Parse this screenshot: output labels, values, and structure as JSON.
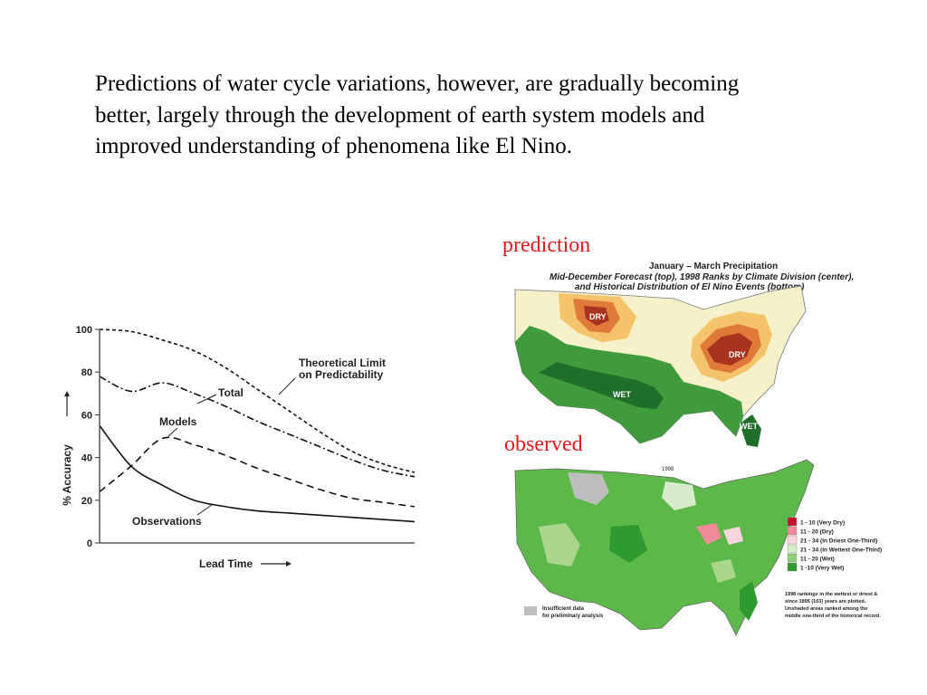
{
  "slide": {
    "paragraph_lines": [
      "Predictions of water cycle variations, however, are gradually becoming",
      "better, largely through the development of earth system models and",
      "improved understanding of phenomena like El Nino."
    ],
    "prediction_label": "prediction",
    "observed_label": "observed",
    "label_color": "#e21a1a"
  },
  "chart_data": {
    "type": "line",
    "title": "",
    "ylabel": "% Accuracy",
    "xlabel": "Lead Time",
    "ylim": [
      0,
      100
    ],
    "yticks": [
      "0",
      "20",
      "40",
      "60",
      "80",
      "100"
    ],
    "x": [
      0,
      1,
      2,
      3,
      4,
      5,
      6,
      7,
      8,
      9,
      10
    ],
    "series": [
      {
        "name": "Theoretical Limit on Predictability",
        "style": "dotted",
        "values": [
          100,
          99,
          95,
          90,
          82,
          72,
          62,
          52,
          43,
          37,
          33
        ]
      },
      {
        "name": "Total",
        "style": "dash-dot",
        "values": [
          78,
          71,
          75,
          70,
          64,
          57,
          51,
          45,
          39,
          34,
          31
        ]
      },
      {
        "name": "Models",
        "style": "dashed",
        "values": [
          24,
          36,
          49,
          46,
          41,
          35,
          30,
          25,
          21,
          19,
          17
        ]
      },
      {
        "name": "Observations",
        "style": "solid",
        "values": [
          55,
          36,
          27,
          20,
          17,
          15,
          14,
          13,
          12,
          11,
          10
        ]
      }
    ],
    "annotations": [
      "Theoretical Limit",
      "on Predictability",
      "Total",
      "Models",
      "Observations"
    ],
    "grid": false
  },
  "maps": {
    "title_line1": "January – March Precipitation",
    "title_line2": "Mid-December Forecast (top), 1998 Ranks by Climate Division (center),",
    "title_line3": "and Historical Distribution of El Nino Events (bottom)",
    "top_labels": [
      "DRY",
      "DRY",
      "WET",
      "WET"
    ],
    "legend_title": "1998",
    "legend": [
      {
        "label": "1 - 10 (Very Dry)",
        "color": "#c8102e"
      },
      {
        "label": "11 - 20 (Dry)",
        "color": "#f08a98"
      },
      {
        "label": "21 - 34 (in Driest One-Third)",
        "color": "#f9d5dc"
      },
      {
        "label": "21 - 34 (in Wettest One-Third)",
        "color": "#d6eccb"
      },
      {
        "label": "11 - 20 (Wet)",
        "color": "#8fcf78"
      },
      {
        "label": "1 -10 (Very Wet)",
        "color": "#2f9a2f"
      }
    ],
    "insufficient_line1": "Insufficient data",
    "insufficient_line2": "for preliminary analysis",
    "note_lines": [
      "1998 rankings in the wettest or driest &",
      "since 1895 (103) years are plotted.",
      "Unshaded areas ranked among the",
      "middle one-third of the historical record."
    ],
    "colors": {
      "dry_dark": "#a8331e",
      "dry_mid": "#e07a3a",
      "dry_light": "#f4c36a",
      "wet_dark": "#1f6e2a",
      "wet_mid": "#3f9b3c",
      "wet_light": "#a9d68a",
      "cream": "#f6f1c8",
      "gray": "#bdbdbd"
    }
  }
}
